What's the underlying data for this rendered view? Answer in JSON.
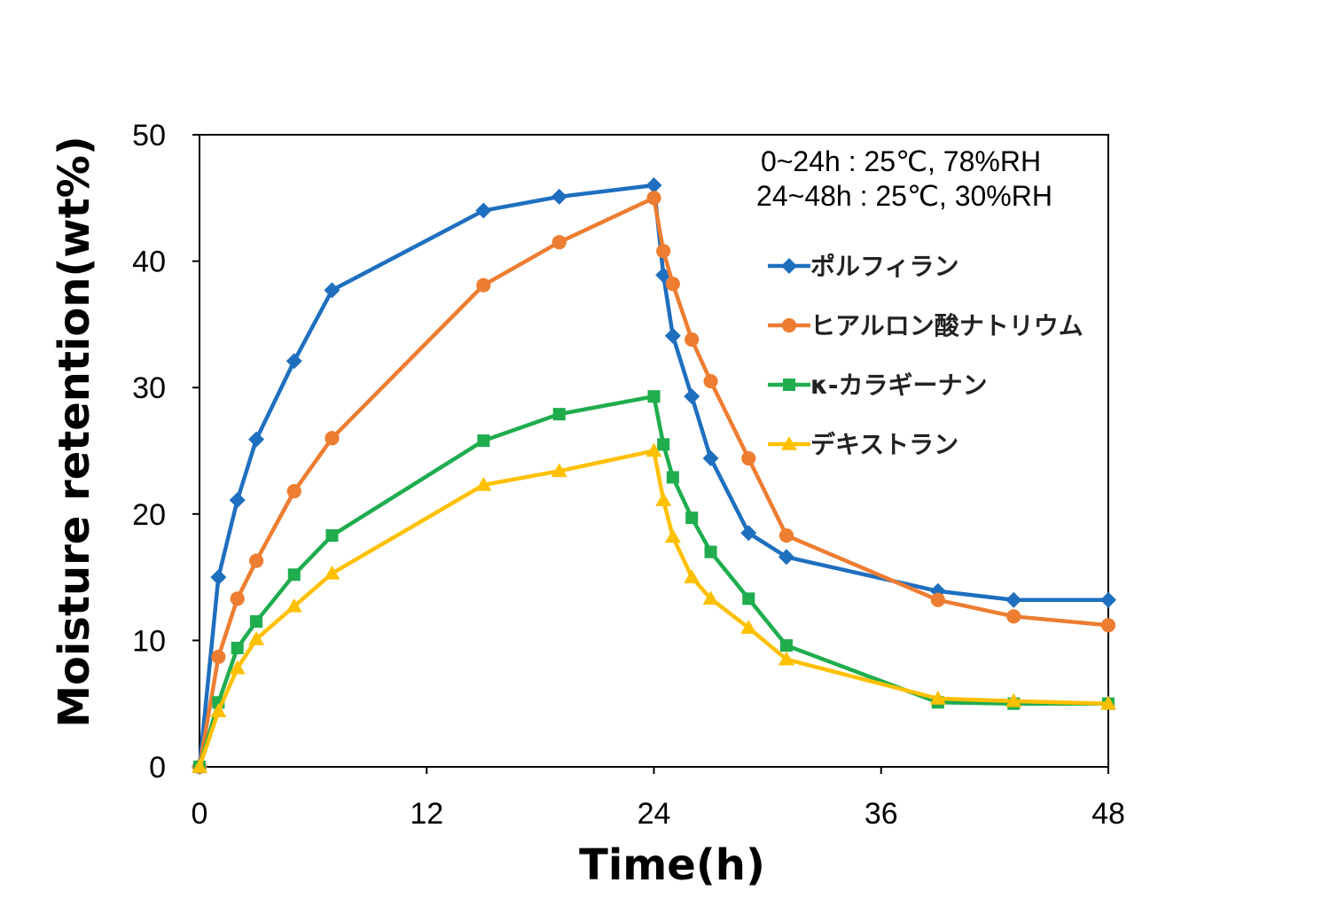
{
  "chart_data": {
    "type": "line",
    "xlabel": "Time(h)",
    "ylabel": "Moisture retention(wt%)",
    "xlim": [
      0,
      48
    ],
    "ylim": [
      0,
      50
    ],
    "xticks": [
      0,
      12,
      24,
      36,
      48
    ],
    "yticks": [
      0,
      10,
      20,
      30,
      40,
      50
    ],
    "grid": false,
    "legend_position": "right",
    "annotations": [
      "0~24h : 25℃,  78%RH",
      "24~48h : 25℃, 30%RH"
    ],
    "series": [
      {
        "name": "ポルフィラン",
        "color": "#1f6fbf",
        "marker": "diamond",
        "points": [
          [
            0,
            0
          ],
          [
            1,
            15
          ],
          [
            2,
            21.1
          ],
          [
            3,
            25.9
          ],
          [
            5,
            32.1
          ],
          [
            7,
            37.7
          ],
          [
            15,
            44
          ],
          [
            19,
            45.1
          ],
          [
            24,
            46
          ],
          [
            24.5,
            38.9
          ],
          [
            25,
            34.1
          ],
          [
            26,
            29.3
          ],
          [
            27,
            24.4
          ],
          [
            29,
            18.5
          ],
          [
            31,
            16.6
          ],
          [
            39,
            13.9
          ],
          [
            43,
            13.2
          ],
          [
            48,
            13.2
          ]
        ]
      },
      {
        "name": "ヒアルロン酸ナトリウム",
        "color": "#ed7d31",
        "marker": "circle",
        "points": [
          [
            0,
            0
          ],
          [
            1,
            8.7
          ],
          [
            2,
            13.3
          ],
          [
            3,
            16.3
          ],
          [
            5,
            21.8
          ],
          [
            7,
            26
          ],
          [
            15,
            38.1
          ],
          [
            19,
            41.5
          ],
          [
            24,
            45
          ],
          [
            24.5,
            40.8
          ],
          [
            25,
            38.2
          ],
          [
            26,
            33.8
          ],
          [
            27,
            30.5
          ],
          [
            29,
            24.4
          ],
          [
            31,
            18.3
          ],
          [
            39,
            13.2
          ],
          [
            43,
            11.9
          ],
          [
            48,
            11.2
          ]
        ]
      },
      {
        "name": "κ-カラギーナン",
        "color": "#1fad4e",
        "marker": "square",
        "points": [
          [
            0,
            0
          ],
          [
            1,
            5.1
          ],
          [
            2,
            9.4
          ],
          [
            3,
            11.5
          ],
          [
            5,
            15.2
          ],
          [
            7,
            18.3
          ],
          [
            15,
            25.8
          ],
          [
            19,
            27.9
          ],
          [
            24,
            29.3
          ],
          [
            24.5,
            25.5
          ],
          [
            25,
            22.9
          ],
          [
            26,
            19.7
          ],
          [
            27,
            17
          ],
          [
            29,
            13.3
          ],
          [
            31,
            9.6
          ],
          [
            39,
            5.1
          ],
          [
            43,
            5
          ],
          [
            48,
            5
          ]
        ]
      },
      {
        "name": "デキストラン",
        "color": "#ffc000",
        "marker": "triangle",
        "points": [
          [
            0,
            0
          ],
          [
            1,
            4.4
          ],
          [
            2,
            7.8
          ],
          [
            3,
            10.1
          ],
          [
            5,
            12.7
          ],
          [
            7,
            15.3
          ],
          [
            15,
            22.3
          ],
          [
            19,
            23.4
          ],
          [
            24,
            25
          ],
          [
            24.5,
            21.1
          ],
          [
            25,
            18.2
          ],
          [
            26,
            15
          ],
          [
            27,
            13.3
          ],
          [
            29,
            11
          ],
          [
            31,
            8.5
          ],
          [
            39,
            5.4
          ],
          [
            43,
            5.2
          ],
          [
            48,
            5
          ]
        ]
      }
    ]
  }
}
